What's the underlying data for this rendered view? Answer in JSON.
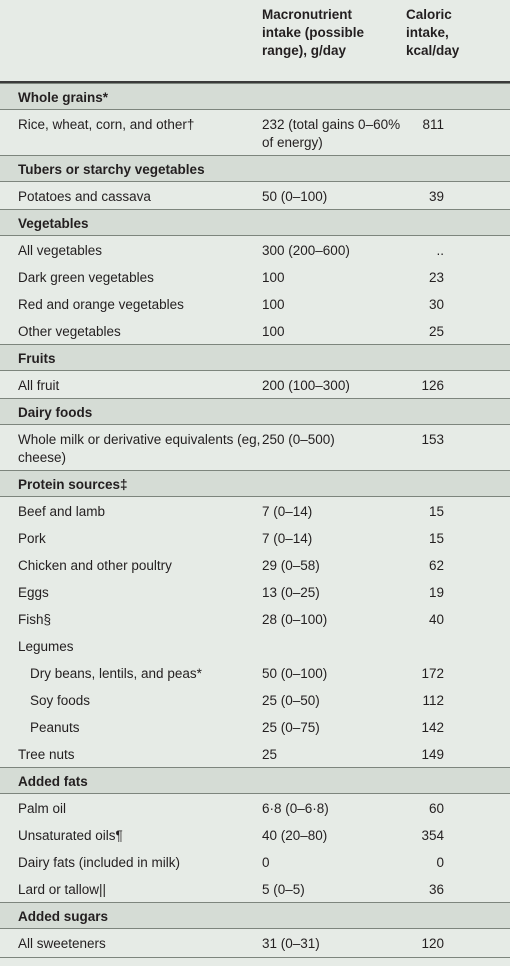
{
  "header": {
    "col_macro": "Macronutrient intake (possible range), g/day",
    "col_caloric": "Caloric intake, kcal/day"
  },
  "rows": [
    {
      "type": "section",
      "label": "Whole grains*"
    },
    {
      "type": "item",
      "label": "Rice, wheat, corn, and other†",
      "macro": "232 (total gains 0–60% of energy)",
      "kcal": "811",
      "tall": true
    },
    {
      "type": "section",
      "label": "Tubers or starchy vegetables"
    },
    {
      "type": "item",
      "label": "Potatoes and cassava",
      "macro": "50 (0–100)",
      "kcal": "39"
    },
    {
      "type": "section",
      "label": "Vegetables"
    },
    {
      "type": "item",
      "label": "All vegetables",
      "macro": "300 (200–600)",
      "kcal": ".."
    },
    {
      "type": "item",
      "label": "Dark green vegetables",
      "macro": "100",
      "kcal": "23"
    },
    {
      "type": "item",
      "label": "Red and orange vegetables",
      "macro": "100",
      "kcal": "30"
    },
    {
      "type": "item",
      "label": "Other vegetables",
      "macro": "100",
      "kcal": "25"
    },
    {
      "type": "section",
      "label": "Fruits"
    },
    {
      "type": "item",
      "label": "All fruit",
      "macro": "200 (100–300)",
      "kcal": "126"
    },
    {
      "type": "section",
      "label": "Dairy foods"
    },
    {
      "type": "item",
      "label": "Whole milk or derivative equivalents (eg, cheese)",
      "macro": "250 (0–500)",
      "kcal": "153",
      "tall": true
    },
    {
      "type": "section",
      "label": "Protein sources‡"
    },
    {
      "type": "item",
      "label": "Beef and lamb",
      "macro": "7 (0–14)",
      "kcal": "15"
    },
    {
      "type": "item",
      "label": "Pork",
      "macro": "7 (0–14)",
      "kcal": "15"
    },
    {
      "type": "item",
      "label": "Chicken and other poultry",
      "macro": "29 (0–58)",
      "kcal": "62"
    },
    {
      "type": "item",
      "label": "Eggs",
      "macro": "13 (0–25)",
      "kcal": "19"
    },
    {
      "type": "item",
      "label": "Fish§",
      "macro": "28 (0–100)",
      "kcal": "40"
    },
    {
      "type": "item",
      "label": "Legumes",
      "macro": "",
      "kcal": ""
    },
    {
      "type": "item",
      "label": "Dry beans, lentils, and peas*",
      "macro": "50 (0–100)",
      "kcal": "172",
      "indent": true
    },
    {
      "type": "item",
      "label": "Soy foods",
      "macro": "25 (0–50)",
      "kcal": "112",
      "indent": true
    },
    {
      "type": "item",
      "label": "Peanuts",
      "macro": "25 (0–75)",
      "kcal": "142",
      "indent": true
    },
    {
      "type": "item",
      "label": "Tree nuts",
      "macro": "25",
      "kcal": "149"
    },
    {
      "type": "section",
      "label": "Added fats"
    },
    {
      "type": "item",
      "label": "Palm oil",
      "macro": "6·8 (0–6·8)",
      "kcal": "60"
    },
    {
      "type": "item",
      "label": "Unsaturated oils¶",
      "macro": "40 (20–80)",
      "kcal": "354"
    },
    {
      "type": "item",
      "label": "Dairy fats (included in milk)",
      "macro": "0",
      "kcal": "0"
    },
    {
      "type": "item",
      "label": "Lard or tallow||",
      "macro": "5 (0–5)",
      "kcal": "36"
    },
    {
      "type": "section",
      "label": "Added sugars"
    },
    {
      "type": "item",
      "label": "All sweeteners",
      "macro": "31 (0–31)",
      "kcal": "120"
    }
  ]
}
